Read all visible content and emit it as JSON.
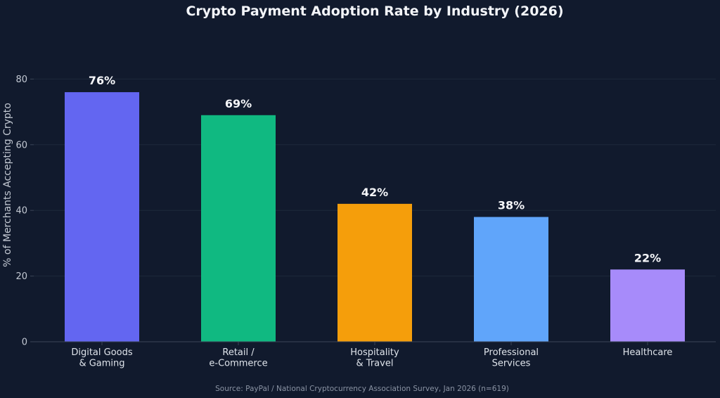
{
  "chart_data": {
    "type": "bar",
    "title": "Crypto Payment Adoption Rate by Industry (2026)",
    "xlabel": "",
    "ylabel": "% of Merchants Accepting Crypto",
    "ylim": [
      0,
      95
    ],
    "yticks": [
      0,
      20,
      40,
      60,
      80
    ],
    "grid": true,
    "categories": [
      [
        "Digital Goods",
        "& Gaming"
      ],
      [
        "Retail /",
        "e-Commerce"
      ],
      [
        "Hospitality",
        "& Travel"
      ],
      [
        "Professional",
        "Services"
      ],
      [
        "Healthcare"
      ]
    ],
    "values": [
      76,
      69,
      42,
      38,
      22
    ],
    "data_labels": [
      "76%",
      "69%",
      "42%",
      "38%",
      "22%"
    ],
    "colors": [
      "#6366f1",
      "#10b981",
      "#f59e0b",
      "#60a5fa",
      "#a78bfa"
    ],
    "source_note": "Source: PayPal / National Cryptocurrency Association Survey, Jan 2026 (n=619)"
  }
}
